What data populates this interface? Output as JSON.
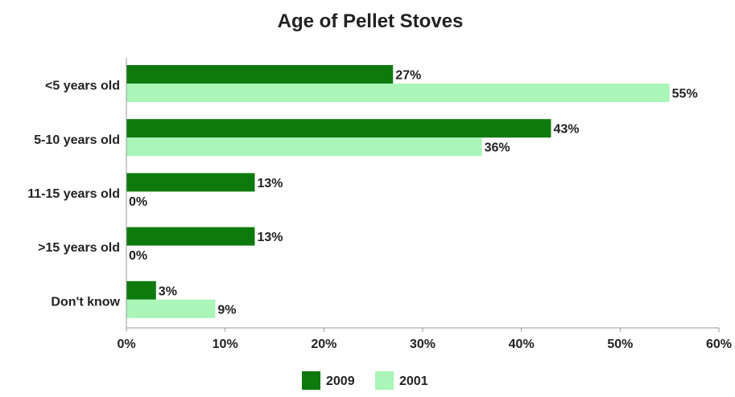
{
  "chart_data": {
    "type": "bar",
    "orientation": "horizontal",
    "title": "Age of Pellet Stoves",
    "categories": [
      "<5 years old",
      "5-10 years old",
      "11-15 years old",
      ">15 years old",
      "Don't know"
    ],
    "series": [
      {
        "name": "2009",
        "values": [
          27,
          43,
          13,
          13,
          3
        ],
        "labels": [
          "27%",
          "43%",
          "13%",
          "13%",
          "3%"
        ],
        "color": "#0e7a0e"
      },
      {
        "name": "2001",
        "values": [
          55,
          36,
          0,
          0,
          9
        ],
        "labels": [
          "55%",
          "36%",
          "0%",
          "0%",
          "9%"
        ],
        "color": "#aaf5b8"
      }
    ],
    "xlim": [
      0,
      60
    ],
    "x_ticks": [
      0,
      10,
      20,
      30,
      40,
      50,
      60
    ],
    "x_tick_labels": [
      "0%",
      "10%",
      "20%",
      "30%",
      "40%",
      "50%",
      "60%"
    ],
    "grid": false,
    "legend_position": "bottom",
    "xlabel": "",
    "ylabel": ""
  }
}
